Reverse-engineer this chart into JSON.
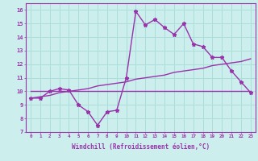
{
  "xlabel": "Windchill (Refroidissement éolien,°C)",
  "background_color": "#cceeed",
  "grid_color": "#aadddb",
  "line_color": "#9933aa",
  "x_values": [
    0,
    1,
    2,
    3,
    4,
    5,
    6,
    7,
    8,
    9,
    10,
    11,
    12,
    13,
    14,
    15,
    16,
    17,
    18,
    19,
    20,
    21,
    22,
    23
  ],
  "y_windchill": [
    9.5,
    9.5,
    10.0,
    10.2,
    10.1,
    9.0,
    8.5,
    7.5,
    8.5,
    8.6,
    11.0,
    15.9,
    14.9,
    15.3,
    14.7,
    14.2,
    15.0,
    13.5,
    13.3,
    12.5,
    12.5,
    11.5,
    10.7,
    9.9
  ],
  "trend_flat": [
    10.0,
    10.0,
    10.0,
    10.0,
    10.0,
    10.0,
    10.0,
    10.0,
    10.0,
    10.0,
    10.0,
    10.0,
    10.0,
    10.0,
    10.0,
    10.0,
    10.0,
    10.0,
    10.0,
    10.0,
    10.0,
    10.0,
    10.0,
    10.0
  ],
  "trend_rising": [
    9.5,
    9.6,
    9.7,
    9.9,
    10.0,
    10.1,
    10.2,
    10.4,
    10.5,
    10.6,
    10.7,
    10.9,
    11.0,
    11.1,
    11.2,
    11.4,
    11.5,
    11.6,
    11.7,
    11.9,
    12.0,
    12.1,
    12.2,
    12.4
  ],
  "ylim": [
    7,
    16.5
  ],
  "xlim": [
    -0.5,
    23.5
  ],
  "yticks": [
    7,
    8,
    9,
    10,
    11,
    12,
    13,
    14,
    15,
    16
  ],
  "xticks": [
    0,
    1,
    2,
    3,
    4,
    5,
    6,
    7,
    8,
    9,
    10,
    11,
    12,
    13,
    14,
    15,
    16,
    17,
    18,
    19,
    20,
    21,
    22,
    23
  ]
}
